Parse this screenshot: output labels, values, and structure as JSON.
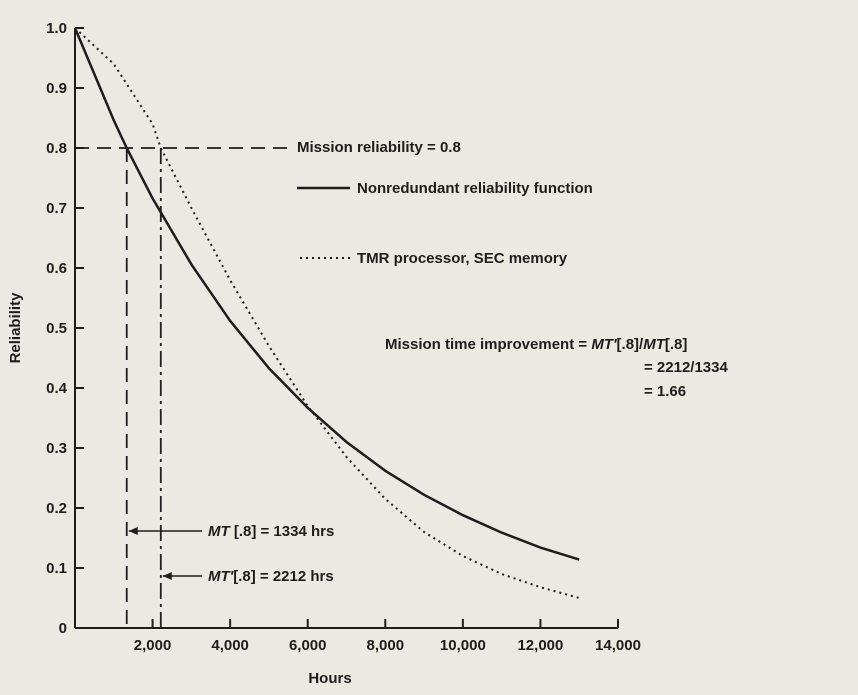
{
  "chart_data": {
    "type": "line",
    "xlabel": "Hours",
    "ylabel": "Reliability",
    "xlim": [
      0,
      14000
    ],
    "ylim": [
      0,
      1.0
    ],
    "x_ticks": [
      "2,000",
      "4,000",
      "6,000",
      "8,000",
      "10,000",
      "12,000",
      "14,000"
    ],
    "x_tick_values": [
      2000,
      4000,
      6000,
      8000,
      10000,
      12000,
      14000
    ],
    "y_ticks": [
      "0",
      "0.1",
      "0.2",
      "0.3",
      "0.4",
      "0.5",
      "0.6",
      "0.7",
      "0.8",
      "0.9",
      "1.0"
    ],
    "y_tick_values": [
      0,
      0.1,
      0.2,
      0.3,
      0.4,
      0.5,
      0.6,
      0.7,
      0.8,
      0.9,
      1.0
    ],
    "series": [
      {
        "name": "Nonredundant reliability function",
        "style": "solid",
        "x": [
          0,
          1000,
          1334,
          2000,
          3000,
          4000,
          5000,
          6000,
          7000,
          8000,
          9000,
          10000,
          11000,
          12000,
          13000
        ],
        "y": [
          1.0,
          0.846,
          0.8,
          0.716,
          0.606,
          0.512,
          0.433,
          0.367,
          0.31,
          0.262,
          0.222,
          0.188,
          0.159,
          0.134,
          0.114
        ]
      },
      {
        "name": "TMR processor, SEC memory",
        "style": "dotted",
        "x": [
          0,
          1000,
          2000,
          2212,
          3000,
          4000,
          5000,
          6000,
          7000,
          8000,
          9000,
          10000,
          11000,
          12000,
          13000
        ],
        "y": [
          1.0,
          0.94,
          0.84,
          0.8,
          0.7,
          0.58,
          0.47,
          0.37,
          0.285,
          0.215,
          0.16,
          0.12,
          0.09,
          0.068,
          0.05
        ]
      }
    ],
    "mission_reliability": 0.8,
    "mt_nonredundant": 1334,
    "mt_tmr": 2212,
    "annotations": {
      "mission_reliability": "Mission reliability = 0.8",
      "improvement_line1_prefix": "Mission time improvement = ",
      "improvement_line1_expr1": "MT'",
      "improvement_line1_expr1b": "[.8]/",
      "improvement_line1_expr2": "MT",
      "improvement_line1_expr2b": "[.8]",
      "improvement_line2": "= 2212/1334",
      "improvement_line3": "= 1.66",
      "mt_label_italic": "MT",
      "mt_label_rest": " [.8] = 1334 hrs",
      "mtp_label_italic": "MT'",
      "mtp_label_rest": "[.8] = 2212 hrs"
    }
  }
}
